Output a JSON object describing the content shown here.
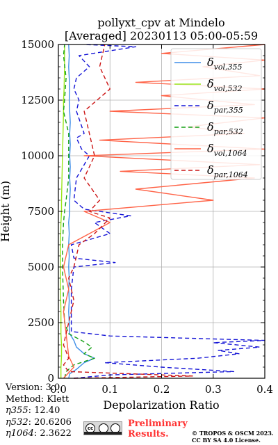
{
  "figure": {
    "title_line1": "pollyxt_cpv at Mindelo",
    "title_line2": "[Averaged] 20230113 05:00-05:59"
  },
  "chart_data": {
    "type": "line",
    "orientation": "vertical-profile",
    "xlabel": "Depolarization Ratio",
    "ylabel": "Height (m)",
    "xlim": [
      0,
      0.4
    ],
    "ylim": [
      0,
      15000
    ],
    "xticks": [
      0.0,
      0.1,
      0.2,
      0.3,
      0.4
    ],
    "xtick_labels": [
      "0.0",
      "0.1",
      "0.2",
      "0.3",
      "0.4"
    ],
    "yticks": [
      0,
      2500,
      5000,
      7500,
      10000,
      12500,
      15000
    ],
    "ytick_labels": [
      "0",
      "2500",
      "5000",
      "7500",
      "10000",
      "12500",
      "15000"
    ],
    "grid": true,
    "legend_position": "top-right",
    "series": [
      {
        "name_main": "δ",
        "name_sub": "vol,355",
        "color": "#3f8ee8",
        "dash": "solid",
        "points": [
          [
            0.02,
            0
          ],
          [
            0.022,
            200
          ],
          [
            0.035,
            400
          ],
          [
            0.05,
            700
          ],
          [
            0.07,
            900
          ],
          [
            0.05,
            1100
          ],
          [
            0.035,
            1400
          ],
          [
            0.03,
            1700
          ],
          [
            0.022,
            2000
          ],
          [
            0.021,
            2500
          ],
          [
            0.02,
            3000
          ],
          [
            0.021,
            3500
          ],
          [
            0.02,
            4000
          ],
          [
            0.021,
            4500
          ],
          [
            0.02,
            5000
          ],
          [
            0.021,
            5500
          ],
          [
            0.02,
            6000
          ],
          [
            0.021,
            6500
          ],
          [
            0.02,
            7000
          ],
          [
            0.022,
            7500
          ],
          [
            0.022,
            8000
          ],
          [
            0.023,
            8500
          ],
          [
            0.022,
            9000
          ],
          [
            0.023,
            9500
          ],
          [
            0.022,
            10000
          ],
          [
            0.023,
            10500
          ],
          [
            0.022,
            11000
          ],
          [
            0.023,
            11500
          ],
          [
            0.022,
            12000
          ],
          [
            0.021,
            12500
          ],
          [
            0.022,
            13000
          ],
          [
            0.021,
            13500
          ],
          [
            0.02,
            14000
          ],
          [
            0.021,
            14500
          ],
          [
            0.02,
            15000
          ]
        ]
      },
      {
        "name_main": "δ",
        "name_sub": "vol,532",
        "color": "#99e61a",
        "dash": "solid",
        "points": [
          [
            0.005,
            0
          ],
          [
            0.005,
            500
          ],
          [
            0.006,
            1000
          ],
          [
            0.006,
            1500
          ],
          [
            0.005,
            2000
          ],
          [
            0.005,
            3000
          ],
          [
            0.004,
            4000
          ],
          [
            0.004,
            5000
          ],
          [
            0.004,
            6000
          ],
          [
            0.005,
            7000
          ],
          [
            0.006,
            7500
          ],
          [
            0.006,
            8000
          ],
          [
            0.007,
            9000
          ],
          [
            0.008,
            10000
          ],
          [
            0.009,
            11000
          ],
          [
            0.01,
            12000
          ],
          [
            0.01,
            12500
          ],
          [
            0.011,
            13000
          ],
          [
            0.012,
            14000
          ],
          [
            0.012,
            15000
          ]
        ]
      },
      {
        "name_main": "δ",
        "name_sub": "par,355",
        "color": "#1414d6",
        "dash": "6,4",
        "points": [
          [
            0.03,
            0
          ],
          [
            0.1,
            150
          ],
          [
            0.34,
            300
          ],
          [
            0.2,
            500
          ],
          [
            0.09,
            700
          ],
          [
            0.27,
            900
          ],
          [
            0.35,
            1100
          ],
          [
            0.31,
            1250
          ],
          [
            0.39,
            1400
          ],
          [
            0.3,
            1600
          ],
          [
            0.4,
            1700
          ],
          [
            0.25,
            1800
          ],
          [
            0.1,
            1900
          ],
          [
            0.025,
            2100
          ],
          [
            0.025,
            2500
          ],
          [
            0.025,
            3000
          ],
          [
            0.025,
            4000
          ],
          [
            0.03,
            5000
          ],
          [
            0.11,
            5200
          ],
          [
            0.03,
            5400
          ],
          [
            0.025,
            6000
          ],
          [
            0.1,
            6500
          ],
          [
            0.07,
            7000
          ],
          [
            0.14,
            7300
          ],
          [
            0.05,
            7600
          ],
          [
            0.03,
            8000
          ],
          [
            0.035,
            9000
          ],
          [
            0.06,
            10000
          ],
          [
            0.045,
            10300
          ],
          [
            0.035,
            10800
          ],
          [
            0.05,
            11000
          ],
          [
            0.035,
            12000
          ],
          [
            0.04,
            12500
          ],
          [
            0.03,
            13000
          ],
          [
            0.035,
            13500
          ],
          [
            0.06,
            14000
          ],
          [
            0.04,
            14500
          ],
          [
            0.15,
            14900
          ],
          [
            0.05,
            15000
          ]
        ]
      },
      {
        "name_main": "δ",
        "name_sub": "par,532",
        "color": "#14a014",
        "dash": "6,4",
        "points": [
          [
            0.012,
            0
          ],
          [
            0.015,
            300
          ],
          [
            0.03,
            600
          ],
          [
            0.07,
            900
          ],
          [
            0.05,
            1100
          ],
          [
            0.065,
            1400
          ],
          [
            0.045,
            1700
          ],
          [
            0.02,
            2000
          ],
          [
            0.012,
            2500
          ],
          [
            0.01,
            3500
          ],
          [
            0.008,
            5000
          ],
          [
            0.008,
            6000
          ],
          [
            0.01,
            7000
          ],
          [
            0.012,
            7500
          ],
          [
            0.015,
            8000
          ],
          [
            0.02,
            9000
          ],
          [
            0.02,
            10000
          ],
          [
            0.02,
            11000
          ],
          [
            0.01,
            12000
          ],
          [
            0.012,
            12500
          ],
          [
            0.015,
            13500
          ],
          [
            0.01,
            14500
          ],
          [
            0.012,
            15000
          ]
        ]
      },
      {
        "name_main": "δ",
        "name_sub": "vol,1064",
        "color": "#ff6347",
        "dash": "solid",
        "points": [
          [
            0.01,
            0
          ],
          [
            0.03,
            500
          ],
          [
            0.02,
            1000
          ],
          [
            0.015,
            2000
          ],
          [
            0.01,
            3000
          ],
          [
            0.02,
            4000
          ],
          [
            0.01,
            5000
          ],
          [
            0.02,
            6000
          ],
          [
            0.06,
            6500
          ],
          [
            0.1,
            7000
          ],
          [
            0.05,
            7500
          ],
          [
            0.3,
            8000
          ],
          [
            0.15,
            8500
          ],
          [
            0.38,
            9000
          ],
          [
            0.12,
            9300
          ],
          [
            0.39,
            9600
          ],
          [
            0.05,
            10000
          ],
          [
            0.4,
            10300
          ],
          [
            0.08,
            10700
          ],
          [
            0.36,
            11000
          ],
          [
            0.25,
            11300
          ],
          [
            0.4,
            11700
          ],
          [
            0.1,
            12000
          ],
          [
            0.38,
            12300
          ],
          [
            0.2,
            12700
          ],
          [
            0.4,
            13000
          ],
          [
            0.15,
            13300
          ],
          [
            0.39,
            13600
          ],
          [
            0.28,
            14000
          ],
          [
            0.4,
            14300
          ],
          [
            0.2,
            14600
          ],
          [
            0.4,
            15000
          ]
        ]
      },
      {
        "name_main": "δ",
        "name_sub": "par,1064",
        "color": "#cc1414",
        "dash": "6,4",
        "points": [
          [
            0.03,
            0
          ],
          [
            0.26,
            100
          ],
          [
            0.02,
            300
          ],
          [
            0.01,
            600
          ],
          [
            0.02,
            900
          ],
          [
            0.01,
            1500
          ],
          [
            0.02,
            2500
          ],
          [
            0.03,
            3500
          ],
          [
            0.02,
            4500
          ],
          [
            0.03,
            5000
          ],
          [
            0.04,
            6000
          ],
          [
            0.07,
            6500
          ],
          [
            0.1,
            7200
          ],
          [
            0.06,
            7500
          ],
          [
            0.08,
            8000
          ],
          [
            0.05,
            9000
          ],
          [
            0.07,
            10000
          ],
          [
            0.06,
            11000
          ],
          [
            0.05,
            12000
          ],
          [
            0.1,
            13000
          ],
          [
            0.08,
            14000
          ],
          [
            0.09,
            15000
          ]
        ]
      }
    ]
  },
  "footer": {
    "version": "Version: 3.0",
    "method": "Method: Klett",
    "eta355_name": "η355",
    "eta355_value": ":  12.40",
    "eta532_name": "η532",
    "eta532_value": ": 20.6206",
    "eta1064_name": "η1064",
    "eta1064_value": ": 2.3622",
    "preliminary_line1": "Preliminary",
    "preliminary_line2": "Results.",
    "copyright_line1": "© TROPOS & OSCM 2023.",
    "copyright_line2": "CC BY SA 4.0 License."
  }
}
